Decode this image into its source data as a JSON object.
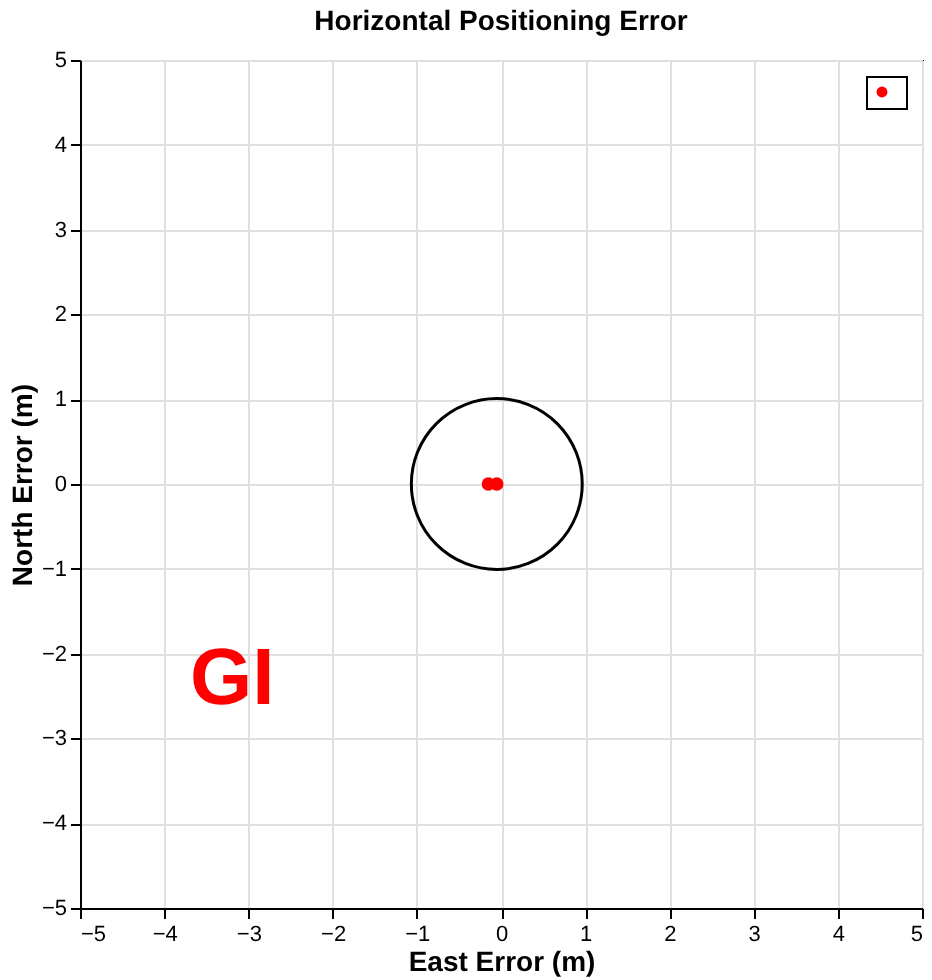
{
  "chart_data": {
    "type": "scatter",
    "title": "Horizontal Positioning Error",
    "xlabel": "East Error (m)",
    "ylabel": "North Error (m)",
    "annotations": [
      "GI"
    ],
    "xlim": [
      -5,
      5
    ],
    "xticks": [
      -5,
      -4,
      -3,
      -2,
      -1,
      0,
      1,
      2,
      3,
      4,
      5
    ],
    "ylim": [
      -5,
      5
    ],
    "yticks": [
      -5,
      -4,
      -3,
      -2,
      -1,
      0,
      1,
      2,
      3,
      4,
      5
    ],
    "grid": true,
    "series": [
      {
        "color": "#ff0000",
        "marker": "circle",
        "x": [
          -0.15,
          -0.05
        ],
        "values": [
          0.0,
          0.0
        ]
      }
    ]
  }
}
